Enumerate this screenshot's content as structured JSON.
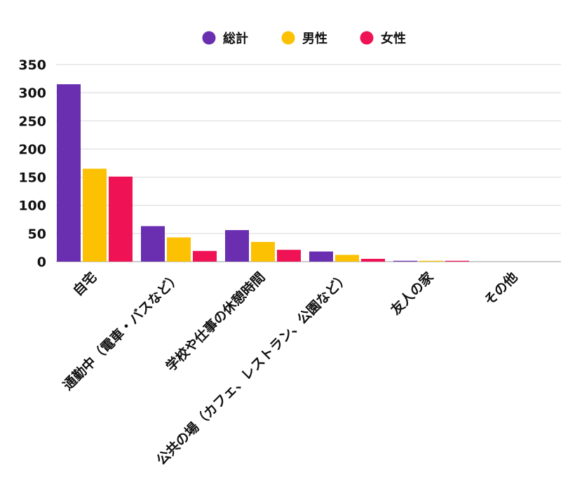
{
  "chart_data": {
    "type": "bar",
    "title": "",
    "xlabel": "",
    "ylabel": "",
    "ylim": [
      0,
      350
    ],
    "yticks": [
      0,
      50,
      100,
      150,
      200,
      250,
      300,
      350
    ],
    "grid": true,
    "legend_position": "top-center",
    "categories": [
      "自宅",
      "通勤中（電車・バスなど）",
      "学校や仕事の休憩時間",
      "公共の場（カフェ、レストラン、公園など）",
      "友人の家",
      "その他"
    ],
    "series": [
      {
        "name": "総計",
        "color": "#6a2fb0",
        "values": [
          315,
          63,
          56,
          18,
          1,
          0
        ]
      },
      {
        "name": "男性",
        "color": "#fbc102",
        "values": [
          165,
          43,
          35,
          12,
          1,
          0
        ]
      },
      {
        "name": "女性",
        "color": "#ef1356",
        "values": [
          151,
          19,
          21,
          5,
          1,
          0
        ]
      }
    ]
  }
}
